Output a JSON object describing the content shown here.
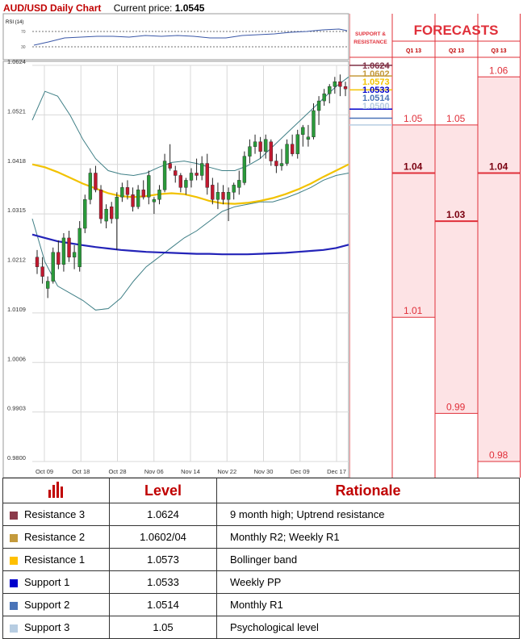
{
  "header": {
    "title": "AUD/USD Daily Chart",
    "current_price_label": "Current price:",
    "current_price": "1.0545"
  },
  "rsi": {
    "label": "RSI (14)",
    "levels": [
      "70",
      "30"
    ]
  },
  "forecast_panel": {
    "support_resistance_label": [
      "SUPPORT &",
      "RESISTANCE"
    ],
    "title": "FORECASTS",
    "columns": [
      {
        "label": "Q1 13",
        "values": [
          "1.05",
          "1.04",
          "1.01"
        ],
        "bold": [
          "1.04"
        ]
      },
      {
        "label": "Q2 13",
        "values": [
          "1.05",
          "1.03",
          "0.99"
        ],
        "bold": [
          "1.03"
        ]
      },
      {
        "label": "Q3 13",
        "values": [
          "1.06",
          "1.04",
          "0.98"
        ],
        "bold": [
          "1.04"
        ]
      }
    ],
    "sr_tags": [
      {
        "value": "1.0624",
        "color": "#7f3045"
      },
      {
        "value": "1.0602",
        "color": "#c49a3c"
      },
      {
        "value": "1.0573",
        "color": "#f2c200"
      },
      {
        "value": "1.0533",
        "color": "#0000cc"
      },
      {
        "value": "1.0514",
        "color": "#4a74b8"
      },
      {
        "value": "1.0500",
        "color": "#b7cde2"
      }
    ]
  },
  "table": {
    "headers": [
      "",
      "Level",
      "Rationale"
    ],
    "rows": [
      {
        "name": "Resistance 3",
        "level": "1.0624",
        "rationale": "9 month high; Uptrend resistance",
        "color": "#8b3a4a"
      },
      {
        "name": "Resistance 2",
        "level": "1.0602/04",
        "rationale": "Monthly R2; Weekly R1",
        "color": "#c49a3c"
      },
      {
        "name": "Resistance 1",
        "level": "1.0573",
        "rationale": "Bollinger band",
        "color": "#ffc000"
      },
      {
        "name": "Support 1",
        "level": "1.0533",
        "rationale": "Weekly PP",
        "color": "#0000cc"
      },
      {
        "name": "Support 2",
        "level": "1.0514",
        "rationale": "Monthly R1",
        "color": "#4a74b8"
      },
      {
        "name": "Support 3",
        "level": "1.05",
        "rationale": "Psychological level",
        "color": "#b7cde2"
      }
    ]
  },
  "chart_data": {
    "type": "candlestick",
    "y_ticks": [
      "1.0624",
      "1.0521",
      "1.0418",
      "1.0315",
      "1.0212",
      "1.0109",
      "1.0006",
      "0.9903",
      "0.9800"
    ],
    "x_ticks": [
      "Oct 09",
      "Oct 18",
      "Oct 28",
      "Nov 06",
      "Nov 14",
      "Nov 22",
      "Nov 30",
      "Dec 09",
      "Dec 17"
    ],
    "ylim": [
      0.98,
      1.0624
    ],
    "grid": true,
    "candles": [
      [
        1.0225,
        1.024,
        1.019,
        1.0205
      ],
      [
        1.0205,
        1.0225,
        1.017,
        1.0185
      ],
      [
        1.016,
        1.0185,
        1.014,
        1.0175
      ],
      [
        1.0175,
        1.0245,
        1.017,
        1.0235
      ],
      [
        1.0235,
        1.026,
        1.02,
        1.021
      ],
      [
        1.021,
        1.0275,
        1.0195,
        1.0265
      ],
      [
        1.0265,
        1.028,
        1.0215,
        1.0225
      ],
      [
        1.0225,
        1.025,
        1.02,
        1.0235
      ],
      [
        1.0205,
        1.03,
        1.0195,
        1.0285
      ],
      [
        1.0285,
        1.0355,
        1.0275,
        1.0345
      ],
      [
        1.0345,
        1.041,
        1.0335,
        1.04
      ],
      [
        1.04,
        1.0415,
        1.036,
        1.0365
      ],
      [
        1.0365,
        1.0375,
        1.0295,
        1.0305
      ],
      [
        1.03,
        1.0335,
        1.0285,
        1.0325
      ],
      [
        1.033,
        1.034,
        1.0295,
        1.0305
      ],
      [
        1.0305,
        1.036,
        1.024,
        1.035
      ],
      [
        1.035,
        1.038,
        1.034,
        1.037
      ],
      [
        1.037,
        1.0385,
        1.0345,
        1.0355
      ],
      [
        1.0355,
        1.037,
        1.032,
        1.033
      ],
      [
        1.033,
        1.0375,
        1.0325,
        1.0365
      ],
      [
        1.0365,
        1.0385,
        1.0345,
        1.035
      ],
      [
        1.035,
        1.0405,
        1.0335,
        1.0395
      ],
      [
        1.034,
        1.035,
        1.0315,
        1.0345
      ],
      [
        1.0345,
        1.0375,
        1.0335,
        1.0365
      ],
      [
        1.0365,
        1.044,
        1.036,
        1.0425
      ],
      [
        1.042,
        1.046,
        1.0405,
        1.041
      ],
      [
        1.0405,
        1.0415,
        1.038,
        1.0395
      ],
      [
        1.0395,
        1.04,
        1.036,
        1.037
      ],
      [
        1.037,
        1.039,
        1.0355,
        1.0385
      ],
      [
        1.0385,
        1.041,
        1.037,
        1.04
      ],
      [
        1.04,
        1.043,
        1.0385,
        1.0395
      ],
      [
        1.0395,
        1.0435,
        1.0385,
        1.042
      ],
      [
        1.042,
        1.044,
        1.0355,
        1.037
      ],
      [
        1.0375,
        1.039,
        1.0335,
        1.0345
      ],
      [
        1.0345,
        1.038,
        1.0325,
        1.036
      ],
      [
        1.036,
        1.0375,
        1.0335,
        1.0345
      ],
      [
        1.0345,
        1.037,
        1.03,
        1.036
      ],
      [
        1.036,
        1.038,
        1.0345,
        1.0375
      ],
      [
        1.037,
        1.0405,
        1.0355,
        1.0385
      ],
      [
        1.038,
        1.0445,
        1.0375,
        1.0435
      ],
      [
        1.0435,
        1.047,
        1.042,
        1.0455
      ],
      [
        1.0455,
        1.048,
        1.044,
        1.0465
      ],
      [
        1.0465,
        1.0475,
        1.043,
        1.0445
      ],
      [
        1.0445,
        1.048,
        1.043,
        1.047
      ],
      [
        1.0465,
        1.047,
        1.0415,
        1.0425
      ],
      [
        1.0425,
        1.044,
        1.04,
        1.0415
      ],
      [
        1.0415,
        1.045,
        1.0405,
        1.042
      ],
      [
        1.042,
        1.047,
        1.0415,
        1.046
      ],
      [
        1.046,
        1.048,
        1.0435,
        1.044
      ],
      [
        1.044,
        1.049,
        1.043,
        1.048
      ],
      [
        1.048,
        1.05,
        1.0455,
        1.0495
      ],
      [
        1.047,
        1.05,
        1.0455,
        1.0475
      ],
      [
        1.0475,
        1.0545,
        1.047,
        1.053
      ],
      [
        1.053,
        1.056,
        1.05,
        1.055
      ],
      [
        1.055,
        1.0575,
        1.054,
        1.0565
      ],
      [
        1.0565,
        1.0585,
        1.0545,
        1.058
      ],
      [
        1.058,
        1.06,
        1.0565,
        1.059
      ],
      [
        1.059,
        1.0605,
        1.056,
        1.058
      ],
      [
        1.058,
        1.059,
        1.056,
        1.0575
      ]
    ],
    "moving_average_blue": [
      1.0272,
      1.0265,
      1.0258,
      1.0254,
      1.025,
      1.0246,
      1.0243,
      1.024,
      1.0238,
      1.0236,
      1.0235,
      1.0234,
      1.0233,
      1.0232,
      1.0232,
      1.0231,
      1.0231,
      1.0231,
      1.0232,
      1.0233,
      1.0234,
      1.0236,
      1.0238,
      1.024,
      1.0244,
      1.0251
    ],
    "moving_average_yellow": [
      1.0418,
      1.0412,
      1.0402,
      1.039,
      1.0378,
      1.0368,
      1.0358,
      1.0352,
      1.035,
      1.0352,
      1.0356,
      1.0358,
      1.0356,
      1.035,
      1.0342,
      1.0337,
      1.0336,
      1.0338,
      1.0342,
      1.0348,
      1.0356,
      1.0366,
      1.0378,
      1.0392,
      1.0405,
      1.0418
    ],
    "bollinger_upper": [
      1.051,
      1.057,
      1.056,
      1.052,
      1.047,
      1.043,
      1.0405,
      1.0398,
      1.0395,
      1.04,
      1.0412,
      1.0422,
      1.0425,
      1.042,
      1.0412,
      1.0405,
      1.0405,
      1.0415,
      1.043,
      1.0455,
      1.048,
      1.0505,
      1.053,
      1.0555,
      1.058,
      1.06
    ],
    "bollinger_lower": [
      1.0305,
      1.0215,
      1.0165,
      1.015,
      1.0135,
      1.0115,
      1.0118,
      1.014,
      1.0175,
      1.0205,
      1.0225,
      1.0245,
      1.0265,
      1.028,
      1.03,
      1.032,
      1.033,
      1.0335,
      1.034,
      1.034,
      1.0348,
      1.0358,
      1.037,
      1.0385,
      1.0395,
      1.04
    ]
  }
}
